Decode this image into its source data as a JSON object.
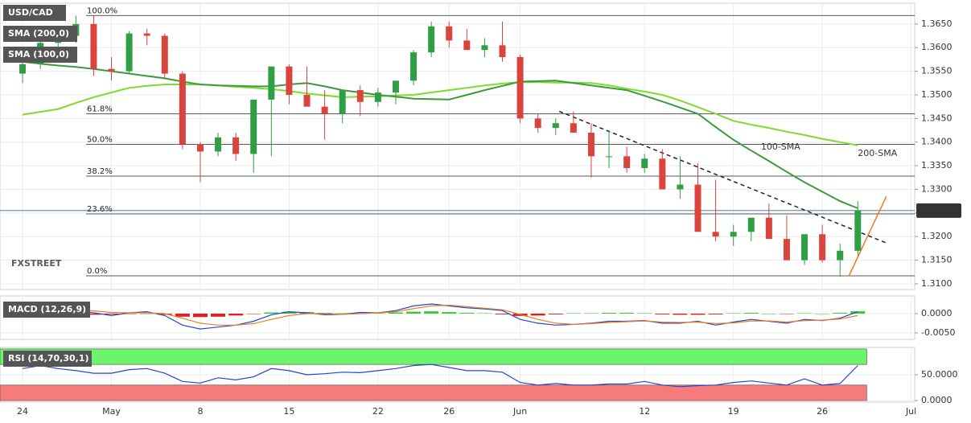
{
  "chart_data": [
    {
      "type": "candlestick",
      "title": "USD/CAD",
      "ylim": [
        1.3088,
        1.3694
      ],
      "yticks": [
        {
          "value": 1.31,
          "label": "1.3100"
        },
        {
          "value": 1.315,
          "label": "1.3150"
        },
        {
          "value": 1.32,
          "label": "1.3200"
        },
        {
          "value": 1.325,
          "label": "1.3250"
        },
        {
          "value": 1.33,
          "label": "1.3300"
        },
        {
          "value": 1.335,
          "label": "1.3350"
        },
        {
          "value": 1.34,
          "label": "1.3400"
        },
        {
          "value": 1.345,
          "label": "1.3450"
        },
        {
          "value": 1.35,
          "label": "1.3500"
        },
        {
          "value": 1.355,
          "label": "1.3550"
        },
        {
          "value": 1.36,
          "label": "1.3600"
        },
        {
          "value": 1.365,
          "label": "1.3650"
        }
      ],
      "up_color": "#2f9e44",
      "down_color": "#d9443c",
      "candles": {
        "open": [
          1.3545,
          1.3565,
          1.361,
          1.3625,
          1.365,
          1.3555,
          1.355,
          1.363,
          1.3625,
          1.3545,
          1.3395,
          1.338,
          1.341,
          1.3375,
          1.349,
          1.356,
          1.35,
          1.3475,
          1.346,
          1.351,
          1.3485,
          1.3505,
          1.353,
          1.359,
          1.3645,
          1.3615,
          1.3595,
          1.3605,
          1.358,
          1.345,
          1.343,
          1.344,
          1.342,
          1.337,
          1.337,
          1.3345,
          1.3365,
          1.33,
          1.331,
          1.321,
          1.32,
          1.321,
          1.324,
          1.3195,
          1.315,
          1.3205,
          1.315,
          1.317
        ],
        "high": [
          1.3575,
          1.3615,
          1.363,
          1.3668,
          1.3668,
          1.358,
          1.3635,
          1.364,
          1.363,
          1.355,
          1.34,
          1.342,
          1.342,
          1.3395,
          1.3495,
          1.3565,
          1.356,
          1.351,
          1.348,
          1.352,
          1.3515,
          1.3515,
          1.3595,
          1.3655,
          1.3655,
          1.364,
          1.362,
          1.3655,
          1.3585,
          1.346,
          1.345,
          1.3465,
          1.344,
          1.3425,
          1.339,
          1.3375,
          1.3385,
          1.337,
          1.3355,
          1.332,
          1.3225,
          1.323,
          1.327,
          1.3245,
          1.32,
          1.3225,
          1.3185,
          1.3275
        ],
        "low": [
          1.3525,
          1.3555,
          1.3595,
          1.361,
          1.354,
          1.353,
          1.3545,
          1.3605,
          1.3535,
          1.3385,
          1.3315,
          1.337,
          1.336,
          1.3335,
          1.337,
          1.348,
          1.349,
          1.3405,
          1.344,
          1.3455,
          1.3475,
          1.348,
          1.352,
          1.358,
          1.36,
          1.36,
          1.358,
          1.357,
          1.344,
          1.342,
          1.3415,
          1.342,
          1.3325,
          1.3345,
          1.3335,
          1.3335,
          1.334,
          1.328,
          1.329,
          1.319,
          1.318,
          1.319,
          1.3225,
          1.3185,
          1.314,
          1.3145,
          1.3115,
          1.316
        ],
        "close": [
          1.3565,
          1.361,
          1.3625,
          1.365,
          1.3555,
          1.355,
          1.363,
          1.3625,
          1.3545,
          1.3395,
          1.338,
          1.341,
          1.3375,
          1.349,
          1.356,
          1.35,
          1.3475,
          1.346,
          1.351,
          1.3485,
          1.3505,
          1.353,
          1.359,
          1.3645,
          1.3615,
          1.3595,
          1.3605,
          1.358,
          1.345,
          1.343,
          1.344,
          1.342,
          1.337,
          1.337,
          1.3345,
          1.3365,
          1.33,
          1.331,
          1.321,
          1.32,
          1.321,
          1.324,
          1.3195,
          1.315,
          1.3205,
          1.315,
          1.317,
          1.3255
        ]
      },
      "series": [
        {
          "name": "SMA (200,0)",
          "label": "200-SMA",
          "color": "#7ddc2e",
          "values": [
            1.3458,
            1.3464,
            1.347,
            1.3483,
            1.3495,
            1.3505,
            1.3515,
            1.3519,
            1.3522,
            1.3522,
            1.3522,
            1.352,
            1.3517,
            1.3515,
            1.3512,
            1.3508,
            1.3503,
            1.3499,
            1.3495,
            1.3496,
            1.3497,
            1.3499,
            1.35,
            1.3505,
            1.351,
            1.3515,
            1.352,
            1.3524,
            1.3527,
            1.3527,
            1.3526,
            1.3526,
            1.3525,
            1.352,
            1.3513,
            1.3507,
            1.35,
            1.3488,
            1.3474,
            1.346,
            1.3445,
            1.3437,
            1.343,
            1.3422,
            1.3415,
            1.3407,
            1.34,
            1.3393
          ]
        },
        {
          "name": "SMA (100,0)",
          "label": "100-SMA",
          "color": "#3c9a3c",
          "values": [
            1.357,
            1.3566,
            1.3562,
            1.3559,
            1.3555,
            1.355,
            1.3545,
            1.354,
            1.3535,
            1.3528,
            1.3522,
            1.352,
            1.3519,
            1.3518,
            1.3518,
            1.3522,
            1.3525,
            1.3518,
            1.351,
            1.3505,
            1.35,
            1.3496,
            1.3492,
            1.3491,
            1.349,
            1.35,
            1.351,
            1.3519,
            1.3528,
            1.3529,
            1.353,
            1.3525,
            1.352,
            1.3515,
            1.351,
            1.3498,
            1.3486,
            1.3473,
            1.346,
            1.3432,
            1.3405,
            1.3382,
            1.336,
            1.3337,
            1.3315,
            1.3295,
            1.3275,
            1.326
          ]
        }
      ],
      "fib_levels": [
        {
          "label": "100.0%",
          "value": 1.3668
        },
        {
          "label": "61.8%",
          "value": 1.346
        },
        {
          "label": "50.0%",
          "value": 1.3395
        },
        {
          "label": "38.2%",
          "value": 1.3328
        },
        {
          "label": "23.6%",
          "value": 1.3248
        },
        {
          "label": "0.0%",
          "value": 1.3117
        }
      ],
      "trendlines": [
        {
          "x": [
            30.2,
            48.7
          ],
          "values": [
            1.3465,
            1.3185
          ],
          "color": "#222222",
          "dashed": true
        },
        {
          "x": [
            46.5,
            48.6
          ],
          "values": [
            1.3117,
            1.3285
          ],
          "color": "#f07a1e",
          "dashed": false
        }
      ],
      "last_price": 1.32551,
      "watermark": "FXSTREET"
    },
    {
      "type": "macd",
      "title": "MACD (12,26,9)",
      "ylim": [
        -0.0067,
        0.0046
      ],
      "yticks": [
        {
          "value": 0,
          "label": "0.0000"
        },
        {
          "value": -0.005,
          "label": "-0.0050"
        }
      ],
      "histogram": [
        -0.0002,
        -0.0003,
        -0.0004,
        -0.0004,
        -0.0003,
        -0.0002,
        -0.0001,
        0,
        -0.0003,
        -0.0008,
        -0.0009,
        -0.0008,
        -0.0005,
        -0.0001,
        0.0003,
        0.0005,
        0.0004,
        0.0002,
        0.0001,
        0,
        0.0001,
        0.0003,
        0.0005,
        0.0006,
        0.0004,
        0.0002,
        0.0001,
        -0.0002,
        -0.0006,
        -0.0005,
        -0.0002,
        0.0001,
        0.0001,
        0.0002,
        0.0002,
        0.0001,
        -0.0002,
        -0.0003,
        -0.0003,
        -0.0002,
        0.0001,
        0.0002,
        0,
        -0.0001,
        0.0001,
        0,
        0.0002,
        0.0006
      ],
      "up_color": "#33cc33",
      "down_color": "#e02020",
      "series": [
        {
          "color": "#2145d8",
          "values": [
            0.0012,
            0.0015,
            0.001,
            0.0008,
            0.0002,
            -0.0005,
            0.0002,
            0.0005,
            -0.0005,
            -0.003,
            -0.004,
            -0.0035,
            -0.003,
            -0.002,
            -0.0003,
            0.0005,
            0.0002,
            -0.0003,
            -0.0002,
            0.0003,
            0.0002,
            0.0008,
            0.002,
            0.0025,
            0.002,
            0.0015,
            0.0012,
            0.0008,
            -0.0015,
            -0.0025,
            -0.003,
            -0.0028,
            -0.0025,
            -0.002,
            -0.002,
            -0.0018,
            -0.0025,
            -0.0025,
            -0.002,
            -0.003,
            -0.0022,
            -0.0015,
            -0.002,
            -0.0025,
            -0.0015,
            -0.0018,
            -0.0012,
            0.0005
          ]
        },
        {
          "color": "#f07a1e",
          "values": [
            0.0014,
            0.0013,
            0.0012,
            0.001,
            0.0007,
            0.0003,
            0.0002,
            0.0002,
            0,
            -0.0012,
            -0.0025,
            -0.003,
            -0.003,
            -0.0026,
            -0.0015,
            -0.0005,
            0,
            0,
            -0.0002,
            0,
            0.0002,
            0.0005,
            0.0013,
            0.002,
            0.0022,
            0.0018,
            0.0014,
            0.001,
            -0.0002,
            -0.0015,
            -0.0025,
            -0.0028,
            -0.0026,
            -0.0023,
            -0.0021,
            -0.0019,
            -0.0022,
            -0.0023,
            -0.0022,
            -0.0026,
            -0.0024,
            -0.0019,
            -0.0019,
            -0.0022,
            -0.0018,
            -0.0017,
            -0.0014,
            -0.0005
          ]
        }
      ]
    },
    {
      "type": "line",
      "title": "RSI (14,70,30,1)",
      "ylim": [
        -3,
        103
      ],
      "yticks": [
        {
          "value": 0,
          "label": "0.0000"
        },
        {
          "value": 50,
          "label": "50.0000"
        }
      ],
      "bands": [
        {
          "from": 70,
          "to": 100,
          "color": "#6cf56c"
        },
        {
          "from": 0,
          "to": 30,
          "color": "#f77b7b"
        }
      ],
      "series": [
        {
          "color": "#2145d8",
          "values": [
            62,
            68,
            62,
            58,
            53,
            53,
            60,
            62,
            53,
            37,
            34,
            44,
            40,
            46,
            62,
            58,
            50,
            52,
            55,
            54,
            58,
            62,
            68,
            70,
            64,
            58,
            58,
            55,
            35,
            30,
            33,
            30,
            30,
            32,
            32,
            37,
            30,
            27,
            29,
            30,
            35,
            38,
            34,
            30,
            42,
            30,
            33,
            68
          ]
        }
      ],
      "xlim": [
        -1.27,
        50.2
      ],
      "xticks": [
        {
          "value": 0,
          "label": "24"
        },
        {
          "value": 5,
          "label": "May"
        },
        {
          "value": 10,
          "label": "8"
        },
        {
          "value": 15,
          "label": "15"
        },
        {
          "value": 20,
          "label": "22"
        },
        {
          "value": 24,
          "label": "26"
        },
        {
          "value": 28,
          "label": "Jun"
        },
        {
          "value": 35,
          "label": "12"
        },
        {
          "value": 40,
          "label": "19"
        },
        {
          "value": 45,
          "label": "26"
        },
        {
          "value": 50,
          "label": "Jul"
        }
      ]
    }
  ]
}
